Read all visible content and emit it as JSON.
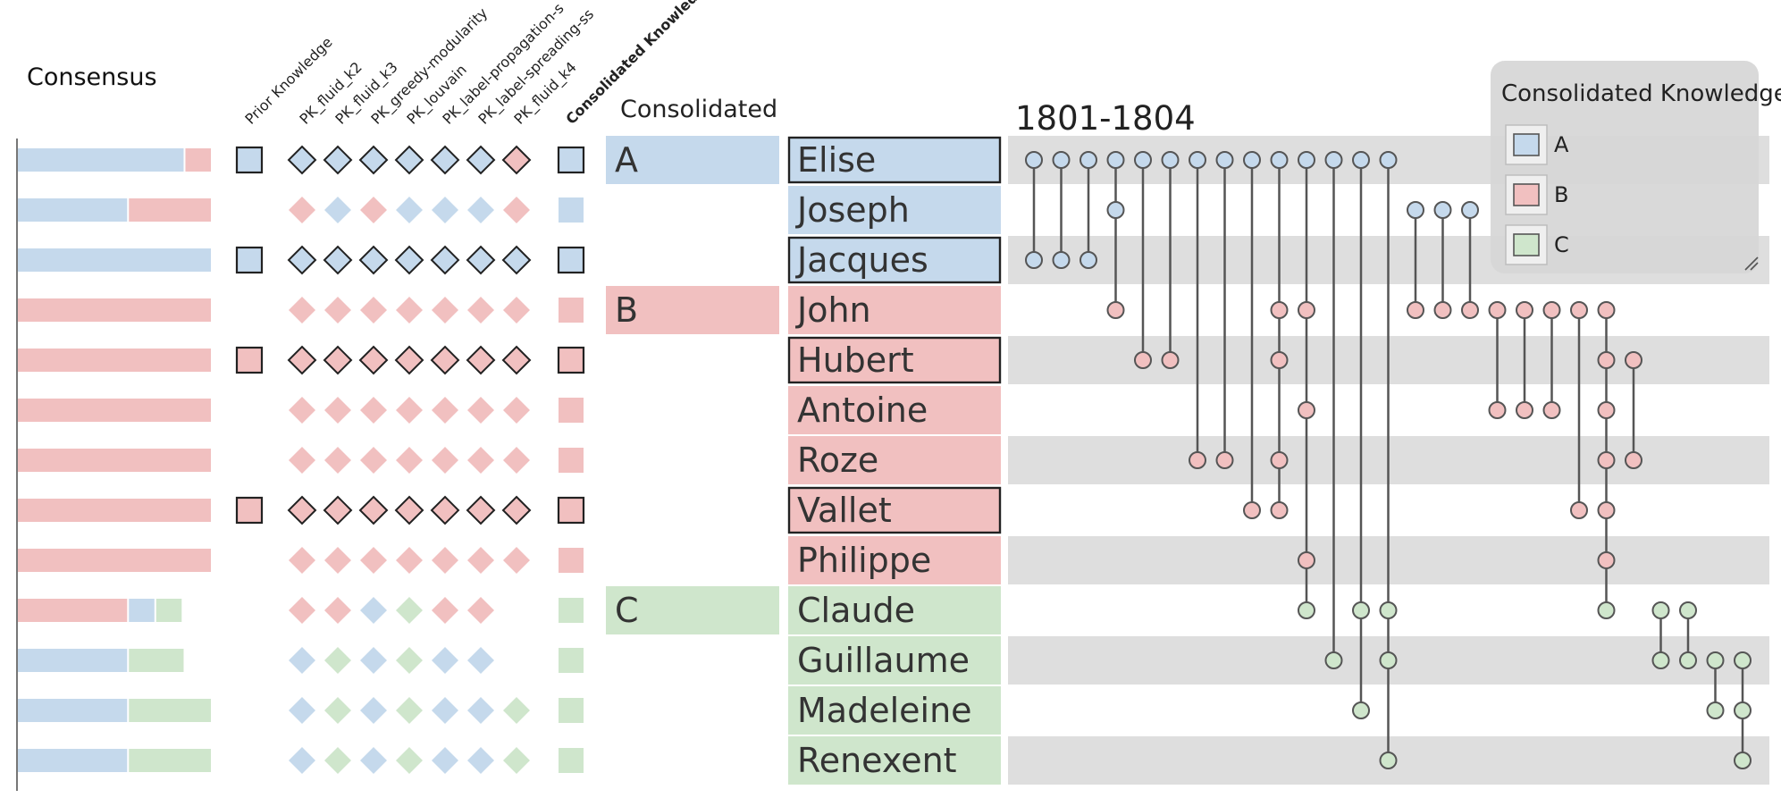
{
  "colors": {
    "A": "#c5d9ec",
    "B": "#f1c0c0",
    "C": "#cfe6cc",
    "lane": "#dedede",
    "stroke": "#222222",
    "link": "#555555"
  },
  "titles": {
    "consensus": "Consensus",
    "consolidated": "Consolidated",
    "period": "1801-1804"
  },
  "headers": [
    "Prior Knowledge",
    "PK_fluid_k2",
    "PK_fluid_k3",
    "PK_greedy-modularity",
    "PK_louvain",
    "PK_label-propagation-s",
    "PK_label-spreading-ss",
    "PK_fluid_k4",
    "Consolidated Knowledge"
  ],
  "legend": {
    "title": "Consolidated Knowledge:",
    "items": [
      "A",
      "B",
      "C"
    ]
  },
  "groups": [
    {
      "label": "A",
      "start": 0,
      "end": 2
    },
    {
      "label": "B",
      "start": 3,
      "end": 8
    },
    {
      "label": "C",
      "start": 9,
      "end": 12
    }
  ],
  "rows": [
    {
      "name": "Elise",
      "group": "A",
      "prior": true,
      "consensus": [
        {
          "c": "A",
          "w": 0.86
        },
        {
          "c": "B",
          "w": 0.14
        }
      ],
      "pk": [
        "A",
        "A",
        "A",
        "A",
        "A",
        "A",
        "B"
      ],
      "boxed": true
    },
    {
      "name": "Joseph",
      "group": "A",
      "prior": false,
      "consensus": [
        {
          "c": "A",
          "w": 0.57
        },
        {
          "c": "B",
          "w": 0.43
        }
      ],
      "pk": [
        "B",
        "A",
        "B",
        "A",
        "A",
        "A",
        "B"
      ],
      "boxed": false
    },
    {
      "name": "Jacques",
      "group": "A",
      "prior": true,
      "consensus": [
        {
          "c": "A",
          "w": 1.0
        }
      ],
      "pk": [
        "A",
        "A",
        "A",
        "A",
        "A",
        "A",
        "A"
      ],
      "boxed": true
    },
    {
      "name": "John",
      "group": "B",
      "prior": false,
      "consensus": [
        {
          "c": "B",
          "w": 1.0
        }
      ],
      "pk": [
        "B",
        "B",
        "B",
        "B",
        "B",
        "B",
        "B"
      ],
      "boxed": false
    },
    {
      "name": "Hubert",
      "group": "B",
      "prior": true,
      "consensus": [
        {
          "c": "B",
          "w": 1.0
        }
      ],
      "pk": [
        "B",
        "B",
        "B",
        "B",
        "B",
        "B",
        "B"
      ],
      "boxed": true
    },
    {
      "name": "Antoine",
      "group": "B",
      "prior": false,
      "consensus": [
        {
          "c": "B",
          "w": 1.0
        }
      ],
      "pk": [
        "B",
        "B",
        "B",
        "B",
        "B",
        "B",
        "B"
      ],
      "boxed": false
    },
    {
      "name": "Roze",
      "group": "B",
      "prior": false,
      "consensus": [
        {
          "c": "B",
          "w": 1.0
        }
      ],
      "pk": [
        "B",
        "B",
        "B",
        "B",
        "B",
        "B",
        "B"
      ],
      "boxed": false
    },
    {
      "name": "Vallet",
      "group": "B",
      "prior": true,
      "consensus": [
        {
          "c": "B",
          "w": 1.0
        }
      ],
      "pk": [
        "B",
        "B",
        "B",
        "B",
        "B",
        "B",
        "B"
      ],
      "boxed": true
    },
    {
      "name": "Philippe",
      "group": "B",
      "prior": false,
      "consensus": [
        {
          "c": "B",
          "w": 1.0
        }
      ],
      "pk": [
        "B",
        "B",
        "B",
        "B",
        "B",
        "B",
        "B"
      ],
      "boxed": false
    },
    {
      "name": "Claude",
      "group": "C",
      "prior": false,
      "consensus": [
        {
          "c": "B",
          "w": 0.57
        },
        {
          "c": "A",
          "w": 0.14
        },
        {
          "c": "C",
          "w": 0.14
        }
      ],
      "pk": [
        "B",
        "B",
        "A",
        "C",
        "B",
        "B",
        null
      ],
      "boxed": false
    },
    {
      "name": "Guillaume",
      "group": "C",
      "prior": false,
      "consensus": [
        {
          "c": "A",
          "w": 0.57
        },
        {
          "c": "C",
          "w": 0.29
        }
      ],
      "pk": [
        "A",
        "C",
        "A",
        "C",
        "A",
        "A",
        null
      ],
      "boxed": false
    },
    {
      "name": "Madeleine",
      "group": "C",
      "prior": false,
      "consensus": [
        {
          "c": "A",
          "w": 0.57
        },
        {
          "c": "C",
          "w": 0.43
        }
      ],
      "pk": [
        "A",
        "C",
        "A",
        "C",
        "A",
        "A",
        "C"
      ],
      "boxed": false
    },
    {
      "name": "Renexent",
      "group": "C",
      "prior": false,
      "consensus": [
        {
          "c": "A",
          "w": 0.57
        },
        {
          "c": "C",
          "w": 0.43
        }
      ],
      "pk": [
        "A",
        "C",
        "A",
        "C",
        "A",
        "A",
        "C"
      ],
      "boxed": false
    }
  ],
  "events": [
    {
      "rows": [
        0,
        2
      ]
    },
    {
      "rows": [
        0,
        2
      ]
    },
    {
      "rows": [
        0,
        2
      ]
    },
    {
      "rows": [
        0,
        1,
        3
      ]
    },
    {
      "rows": [
        0,
        4
      ]
    },
    {
      "rows": [
        0,
        4
      ]
    },
    {
      "rows": [
        0,
        6
      ]
    },
    {
      "rows": [
        0,
        6
      ]
    },
    {
      "rows": [
        0,
        7
      ]
    },
    {
      "rows": [
        0,
        3,
        4,
        6,
        7
      ]
    },
    {
      "rows": [
        0,
        3,
        5,
        8,
        9
      ]
    },
    {
      "rows": [
        0,
        10
      ]
    },
    {
      "rows": [
        0,
        9,
        11
      ]
    },
    {
      "rows": [
        0,
        9,
        10,
        12
      ]
    },
    {
      "rows": [
        1,
        3
      ]
    },
    {
      "rows": [
        1,
        3
      ]
    },
    {
      "rows": [
        1,
        3
      ]
    },
    {
      "rows": [
        3,
        5
      ]
    },
    {
      "rows": [
        3,
        5
      ]
    },
    {
      "rows": [
        3,
        5
      ]
    },
    {
      "rows": [
        3,
        7
      ]
    },
    {
      "rows": [
        3,
        4,
        5,
        6,
        7,
        8,
        9
      ]
    },
    {
      "rows": [
        4,
        6
      ]
    },
    {
      "rows": [
        9,
        10
      ]
    },
    {
      "rows": [
        9,
        10
      ]
    },
    {
      "rows": [
        10,
        11
      ]
    },
    {
      "rows": [
        10,
        11,
        12
      ]
    }
  ]
}
